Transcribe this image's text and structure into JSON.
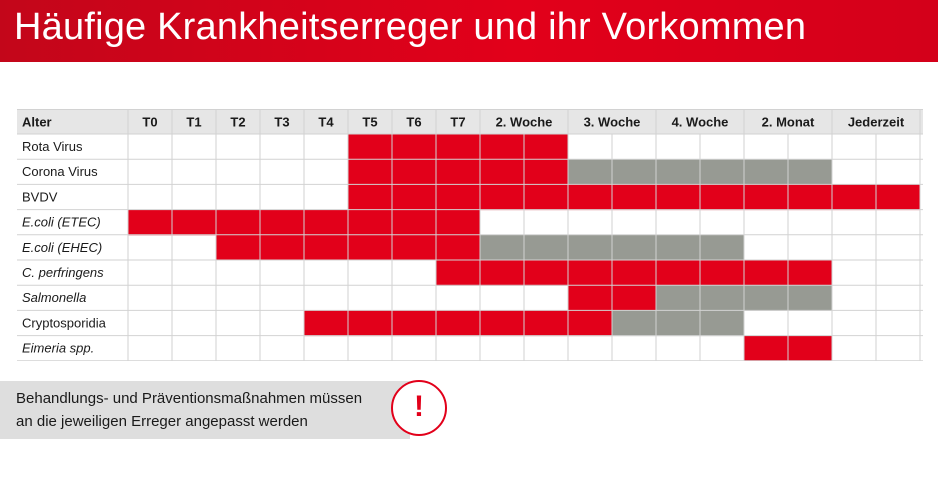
{
  "header": {
    "title": "Häufige Krankheitserreger und ihr Vorkommen"
  },
  "note": {
    "line1": "Behandlungs- und Präventionsmaßnahmen müssen",
    "line2": "an die jeweiligen Erreger angepasst werden"
  },
  "icons": {
    "warning": "exclamation-circle-icon"
  },
  "colors": {
    "brand_red": "#e2001a",
    "gray": "#979a93",
    "header_bg": "#e6e6e6"
  },
  "chart_data": {
    "type": "table",
    "row_header": "Alter",
    "columns": [
      "T0",
      "T1",
      "T2",
      "T3",
      "T4",
      "T5",
      "T6",
      "T7",
      "2. Woche",
      "3. Woche",
      "4. Woche",
      "2. Monat",
      "Jederzeit"
    ],
    "subcells_per_column": [
      1,
      1,
      1,
      1,
      1,
      1,
      1,
      1,
      2,
      2,
      2,
      2,
      2
    ],
    "legend_values": {
      "0": "kein Vorkommen",
      "1": "Vorkommen (rot)",
      "2": "Vorkommen (grau)"
    },
    "rows": [
      {
        "label": "Rota Virus",
        "italic": false,
        "cells": [
          0,
          0,
          0,
          0,
          0,
          1,
          1,
          1,
          1,
          1,
          0,
          0,
          0,
          0,
          0,
          0,
          0,
          0
        ]
      },
      {
        "label": "Corona Virus",
        "italic": false,
        "cells": [
          0,
          0,
          0,
          0,
          0,
          1,
          1,
          1,
          1,
          1,
          2,
          2,
          2,
          2,
          2,
          2,
          0,
          0
        ]
      },
      {
        "label": "BVDV",
        "italic": false,
        "cells": [
          0,
          0,
          0,
          0,
          0,
          1,
          1,
          1,
          1,
          1,
          1,
          1,
          1,
          1,
          1,
          1,
          1,
          1
        ]
      },
      {
        "label": "E.coli (ETEC)",
        "italic": true,
        "cells": [
          1,
          1,
          1,
          1,
          1,
          1,
          1,
          1,
          0,
          0,
          0,
          0,
          0,
          0,
          0,
          0,
          0,
          0
        ]
      },
      {
        "label": "E.coli (EHEC)",
        "italic": true,
        "cells": [
          0,
          0,
          1,
          1,
          1,
          1,
          1,
          1,
          2,
          2,
          2,
          2,
          2,
          2,
          0,
          0,
          0,
          0
        ]
      },
      {
        "label": "C. perfringens",
        "italic": true,
        "cells": [
          0,
          0,
          0,
          0,
          0,
          0,
          0,
          1,
          1,
          1,
          1,
          1,
          1,
          1,
          1,
          1,
          0,
          0
        ]
      },
      {
        "label": "Salmonella",
        "italic": true,
        "cells": [
          0,
          0,
          0,
          0,
          0,
          0,
          0,
          0,
          0,
          0,
          1,
          1,
          2,
          2,
          2,
          2,
          0,
          0
        ]
      },
      {
        "label": "Cryptosporidia",
        "italic": false,
        "cells": [
          0,
          0,
          0,
          0,
          1,
          1,
          1,
          1,
          1,
          1,
          1,
          2,
          2,
          2,
          0,
          0,
          0,
          0
        ]
      },
      {
        "label": "Eimeria spp.",
        "italic": true,
        "cells": [
          0,
          0,
          0,
          0,
          0,
          0,
          0,
          0,
          0,
          0,
          0,
          0,
          0,
          0,
          1,
          1,
          0,
          0
        ]
      }
    ]
  }
}
